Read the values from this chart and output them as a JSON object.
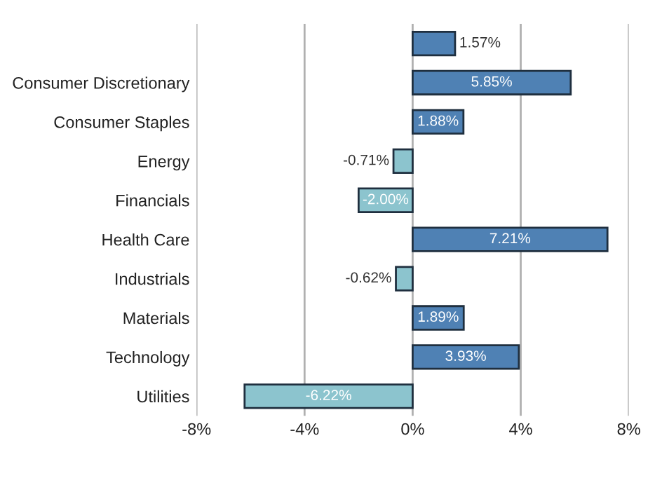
{
  "chart_data": {
    "type": "bar",
    "orientation": "horizontal",
    "categories": [
      null,
      "Consumer Discretionary",
      "Consumer Staples",
      "Energy",
      "Financials",
      "Health Care",
      "Industrials",
      "Materials",
      "Technology",
      "Utilities"
    ],
    "values": [
      1.57,
      5.85,
      1.88,
      -0.71,
      -2.0,
      7.21,
      -0.62,
      1.89,
      3.93,
      -6.22
    ],
    "value_labels": [
      "1.57%",
      "5.85%",
      "1.88%",
      "-0.71%",
      "-2.00%",
      "7.21%",
      "-0.62%",
      "1.89%",
      "3.93%",
      "-6.22%"
    ],
    "colors": [
      "#4f81b4",
      "#4f81b4",
      "#4f81b4",
      "#8cc4ce",
      "#8cc4ce",
      "#4f81b4",
      "#8cc4ce",
      "#4f81b4",
      "#4f81b4",
      "#8cc4ce"
    ],
    "xlim": [
      -8,
      8
    ],
    "xticks": [
      {
        "value": -8,
        "label": "-8%"
      },
      {
        "value": -4,
        "label": "-4%"
      },
      {
        "value": 0,
        "label": "0%"
      },
      {
        "value": 4,
        "label": "4%"
      },
      {
        "value": 8,
        "label": "8%"
      }
    ],
    "grid": "x"
  }
}
